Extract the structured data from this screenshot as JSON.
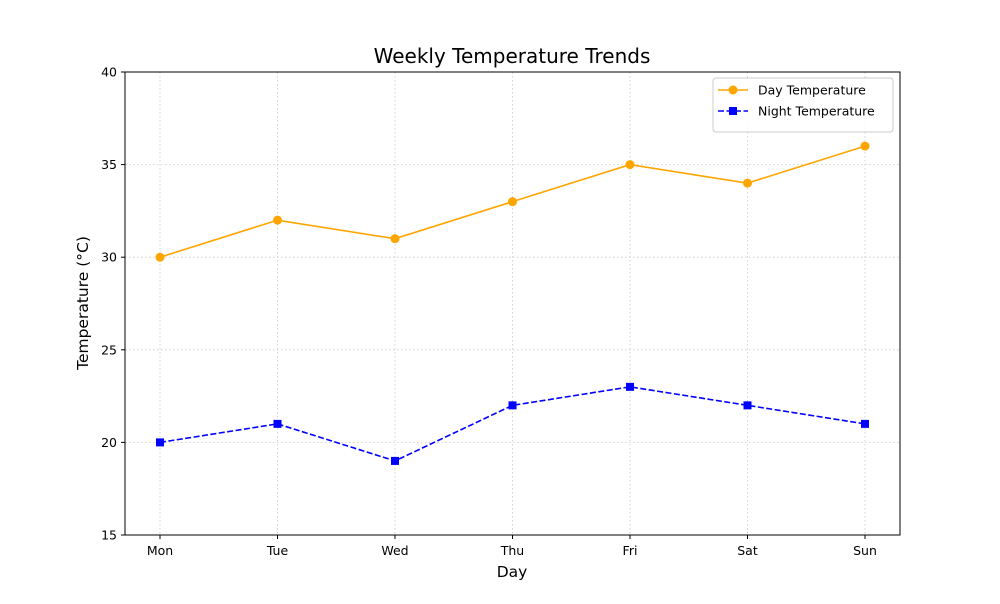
{
  "chart_data": {
    "type": "line",
    "title": "Weekly Temperature Trends",
    "xlabel": "Day",
    "ylabel": "Temperature (°C)",
    "categories": [
      "Mon",
      "Tue",
      "Wed",
      "Thu",
      "Fri",
      "Sat",
      "Sun"
    ],
    "ylim": [
      15,
      40
    ],
    "yticks": [
      15,
      20,
      25,
      30,
      35,
      40
    ],
    "grid": true,
    "legend_position": "top-right",
    "series": [
      {
        "name": "Day Temperature",
        "values": [
          30,
          32,
          31,
          33,
          35,
          34,
          36
        ],
        "color": "#ffa500",
        "marker": "circle",
        "line_style": "solid"
      },
      {
        "name": "Night Temperature",
        "values": [
          20,
          21,
          19,
          22,
          23,
          22,
          21
        ],
        "color": "#0000ff",
        "marker": "square",
        "line_style": "dashed"
      }
    ]
  }
}
